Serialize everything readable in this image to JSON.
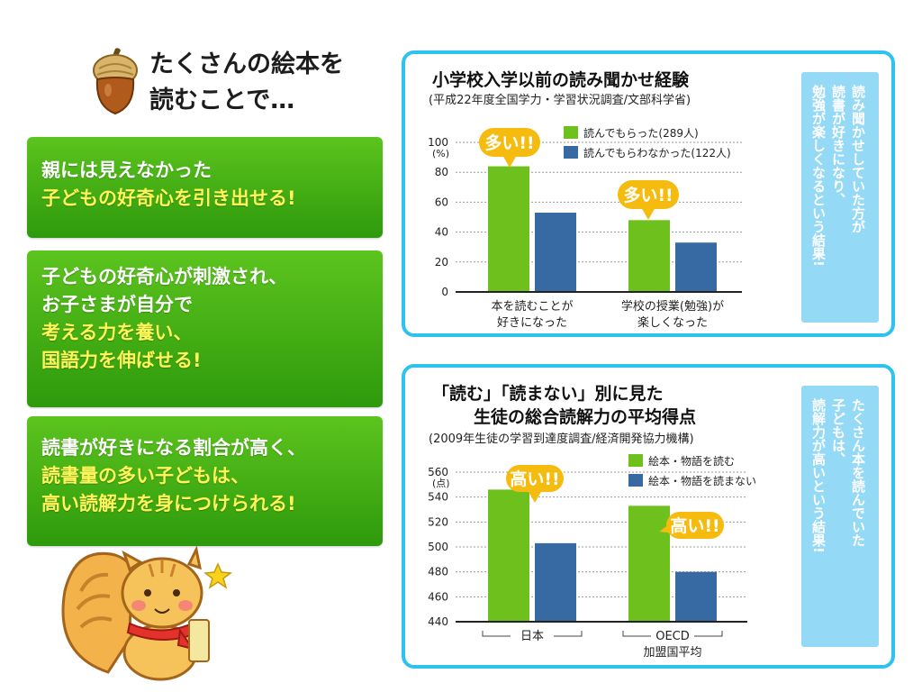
{
  "heading": {
    "line1": "たくさんの絵本を",
    "line2": "読むことで…"
  },
  "cards": [
    {
      "lines": [
        {
          "text": "親には見えなかった",
          "highlight": false
        },
        {
          "text": "子どもの好奇心を引き出せる!",
          "highlight": true
        }
      ]
    },
    {
      "lines": [
        {
          "text": "子どもの好奇心が刺激され、",
          "highlight": false
        },
        {
          "text": "お子さまが自分で",
          "highlight": false
        },
        {
          "text": "考える力を養い、",
          "highlight": true
        },
        {
          "text": "国語力を伸ばせる!",
          "highlight": true
        }
      ]
    },
    {
      "lines": [
        {
          "text": "読書が好きになる割合が高く、",
          "highlight": false
        },
        {
          "text": "読書量の多い子どもは、",
          "highlight": true
        },
        {
          "text": "高い読解力を身につけられる!",
          "highlight": true
        }
      ]
    }
  ],
  "colors": {
    "green_bar": "#6ec11c",
    "blue_bar": "#376aa3",
    "panel_border": "#2cc3ee",
    "callout": "#f6bb0f",
    "side_note": "#94d9f6"
  },
  "chart_data": [
    {
      "type": "bar",
      "title": "小学校入学以前の読み聞かせ経験",
      "subtitle": "(平成22年度全国学力・学習状況調査/文部科学省)",
      "ylabel": "(%)",
      "ylim": [
        0,
        100
      ],
      "yticks": [
        0,
        20,
        40,
        60,
        80,
        100
      ],
      "grid": true,
      "legend": "top-right",
      "categories": [
        {
          "line1": "本を読むことが",
          "line2": "好きになった"
        },
        {
          "line1": "学校の授業(勉強)が",
          "line2": "楽しくなった"
        }
      ],
      "series": [
        {
          "name": "読んでもらった(289人)",
          "color": "#6ec11c",
          "values": [
            84,
            48
          ]
        },
        {
          "name": "読んでもらわなかった(122人)",
          "color": "#376aa3",
          "values": [
            53,
            33
          ]
        }
      ],
      "annotations": [
        {
          "text": "多い!!",
          "category": 0
        },
        {
          "text": "多い!!",
          "category": 1
        }
      ],
      "side_note": "読み聞かせしていた方が\n読書が好きになり、\n勉強が楽しくなるという結果!"
    },
    {
      "type": "bar",
      "title_line1": "「読む」「読まない」別に見た",
      "title_line2": "生徒の総合読解力の平均得点",
      "subtitle": "(2009年生徒の学習到達度調査/経済開発協力機構)",
      "ylabel": "(点)",
      "ylim": [
        440,
        560
      ],
      "yticks": [
        440,
        460,
        480,
        500,
        520,
        540,
        560
      ],
      "grid": true,
      "legend": "top-right",
      "categories": [
        {
          "line1": "日本",
          "line2": ""
        },
        {
          "line1": "OECD",
          "line2": "加盟国平均"
        }
      ],
      "series": [
        {
          "name": "絵本・物語を読む",
          "color": "#6ec11c",
          "values": [
            546,
            533
          ]
        },
        {
          "name": "絵本・物語を読まない",
          "color": "#376aa3",
          "values": [
            503,
            480
          ]
        }
      ],
      "annotations": [
        {
          "text": "高い!!",
          "category": 0
        },
        {
          "text": "高い!!",
          "category": 1
        }
      ],
      "side_note": "たくさん本を読んでいた\n子どもは、\n読解力が高いという結果!"
    }
  ]
}
